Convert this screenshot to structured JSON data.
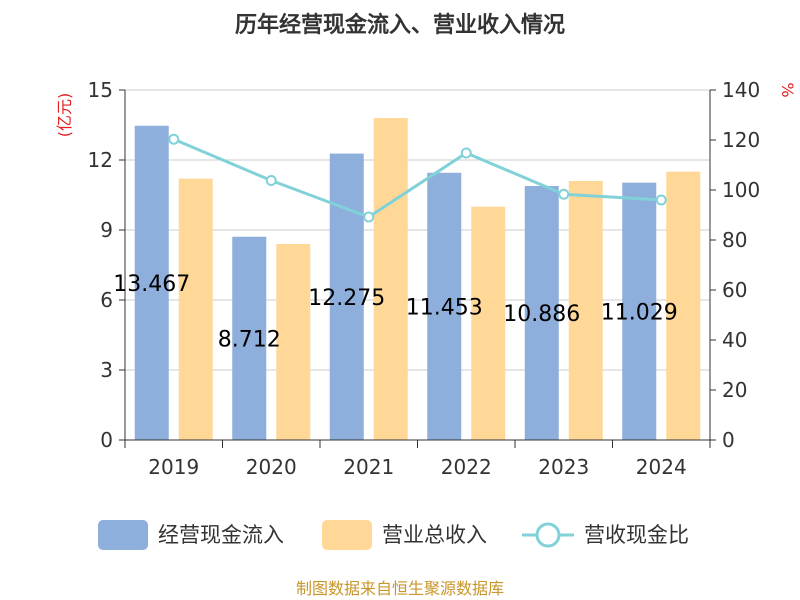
{
  "chart_data": {
    "type": "bar",
    "title": "历年经营现金流入、营业收入情况",
    "categories": [
      "2019",
      "2020",
      "2021",
      "2022",
      "2023",
      "2024"
    ],
    "series": [
      {
        "name": "经营现金流入",
        "kind": "bar",
        "axis": "left",
        "color": "#8eaedb",
        "values": [
          13.467,
          8.712,
          12.275,
          11.453,
          10.886,
          11.029
        ],
        "data_labels": [
          "13.467",
          "8.712",
          "12.275",
          "11.453",
          "10.886",
          "11.029"
        ]
      },
      {
        "name": "营业总收入",
        "kind": "bar",
        "axis": "left",
        "color": "#ffd898",
        "values": [
          11.2,
          8.4,
          13.8,
          10.0,
          11.1,
          11.5
        ]
      },
      {
        "name": "营收现金比",
        "kind": "line",
        "axis": "right",
        "color": "#80d2d8",
        "values": [
          120.3,
          103.8,
          89.2,
          114.8,
          98.3,
          96.0
        ]
      }
    ],
    "y_left": {
      "unit_label": "(亿元)",
      "ylim": [
        0,
        15
      ],
      "ticks": [
        "0",
        "3",
        "6",
        "9",
        "12",
        "15"
      ]
    },
    "y_right": {
      "unit_label": "%",
      "ylim": [
        0,
        140
      ],
      "ticks": [
        "0",
        "20",
        "40",
        "60",
        "80",
        "100",
        "120",
        "140"
      ]
    },
    "grid": true,
    "legend_position": "bottom"
  },
  "source_text": "制图数据来自恒生聚源数据库"
}
